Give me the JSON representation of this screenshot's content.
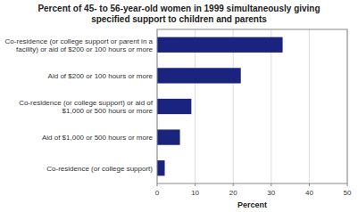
{
  "chart_data": {
    "type": "bar",
    "orientation": "horizontal",
    "title": "Percent of 45- to 56-year-old women in 1999 simultaneously giving\nspecified support to children and parents",
    "categories": [
      "Co-residence (or college support)",
      "Aid of $1,000 or 500 hours or more",
      "Co-residence (or college support) or aid of\n$1,000 or 500 hours or more",
      "Aid of $200 or 100 hours or more",
      "Co-residence (or college support or parent in a\nfacility) or aid of $200 or 100 hours or more"
    ],
    "values": [
      2,
      6,
      9,
      22,
      33
    ],
    "color": "#1a237e",
    "xlabel": "Percent",
    "xlim": [
      0,
      50
    ],
    "xticks": [
      0,
      10,
      20,
      30,
      40,
      50
    ],
    "grid": true
  }
}
